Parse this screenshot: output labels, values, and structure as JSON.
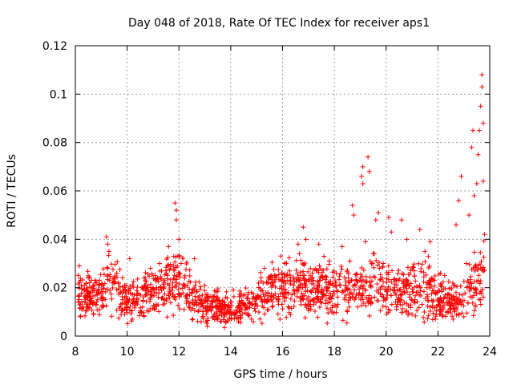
{
  "chart_data": {
    "type": "scatter",
    "title": "Day 048 of 2018, Rate Of TEC Index for receiver aps1",
    "xlabel": "GPS time / hours",
    "ylabel": "ROTI / TECUs",
    "xlim": [
      8,
      24
    ],
    "ylim": [
      0,
      0.12
    ],
    "xticks": [
      8,
      10,
      12,
      14,
      16,
      18,
      20,
      22,
      24
    ],
    "xtick_labels": [
      "8",
      "10",
      "12",
      "14",
      "16",
      "18",
      "20",
      "22",
      "24"
    ],
    "yticks": [
      0,
      0.02,
      0.04,
      0.06,
      0.08,
      0.1,
      0.12
    ],
    "ytick_labels": [
      "0",
      "0.02",
      "0.04",
      "0.06",
      "0.08",
      "0.1",
      "0.12"
    ],
    "grid": true,
    "marker": "+",
    "color": "#ff0000",
    "trend": [
      {
        "x": 8.1,
        "y": 0.018
      },
      {
        "x": 8.5,
        "y": 0.016
      },
      {
        "x": 9.0,
        "y": 0.017
      },
      {
        "x": 9.3,
        "y": 0.022
      },
      {
        "x": 9.7,
        "y": 0.018
      },
      {
        "x": 10.0,
        "y": 0.015
      },
      {
        "x": 10.5,
        "y": 0.015
      },
      {
        "x": 11.0,
        "y": 0.018
      },
      {
        "x": 11.5,
        "y": 0.022
      },
      {
        "x": 11.9,
        "y": 0.025
      },
      {
        "x": 12.3,
        "y": 0.019
      },
      {
        "x": 12.7,
        "y": 0.015
      },
      {
        "x": 13.2,
        "y": 0.012
      },
      {
        "x": 13.7,
        "y": 0.011
      },
      {
        "x": 14.2,
        "y": 0.011
      },
      {
        "x": 14.7,
        "y": 0.013
      },
      {
        "x": 15.2,
        "y": 0.016
      },
      {
        "x": 15.7,
        "y": 0.019
      },
      {
        "x": 16.2,
        "y": 0.02
      },
      {
        "x": 16.7,
        "y": 0.021
      },
      {
        "x": 17.2,
        "y": 0.02
      },
      {
        "x": 17.7,
        "y": 0.019
      },
      {
        "x": 18.2,
        "y": 0.018
      },
      {
        "x": 18.7,
        "y": 0.019
      },
      {
        "x": 19.2,
        "y": 0.02
      },
      {
        "x": 19.7,
        "y": 0.021
      },
      {
        "x": 20.2,
        "y": 0.02
      },
      {
        "x": 20.7,
        "y": 0.02
      },
      {
        "x": 21.2,
        "y": 0.021
      },
      {
        "x": 21.6,
        "y": 0.02
      },
      {
        "x": 22.0,
        "y": 0.016
      },
      {
        "x": 22.5,
        "y": 0.014
      },
      {
        "x": 23.0,
        "y": 0.015
      },
      {
        "x": 23.3,
        "y": 0.019
      },
      {
        "x": 23.7,
        "y": 0.026
      }
    ],
    "points": [
      {
        "x": 8.15,
        "y": 0.029
      },
      {
        "x": 8.2,
        "y": 0.008
      },
      {
        "x": 8.3,
        "y": 0.012
      },
      {
        "x": 8.5,
        "y": 0.024
      },
      {
        "x": 8.7,
        "y": 0.009
      },
      {
        "x": 8.9,
        "y": 0.021
      },
      {
        "x": 9.2,
        "y": 0.041
      },
      {
        "x": 9.25,
        "y": 0.038
      },
      {
        "x": 9.3,
        "y": 0.035
      },
      {
        "x": 9.6,
        "y": 0.026
      },
      {
        "x": 9.9,
        "y": 0.009
      },
      {
        "x": 10.1,
        "y": 0.032
      },
      {
        "x": 10.2,
        "y": 0.007
      },
      {
        "x": 10.6,
        "y": 0.012
      },
      {
        "x": 10.9,
        "y": 0.028
      },
      {
        "x": 11.2,
        "y": 0.016
      },
      {
        "x": 11.6,
        "y": 0.037
      },
      {
        "x": 11.8,
        "y": 0.033
      },
      {
        "x": 11.85,
        "y": 0.055
      },
      {
        "x": 11.9,
        "y": 0.052
      },
      {
        "x": 11.9,
        "y": 0.048
      },
      {
        "x": 12.0,
        "y": 0.04
      },
      {
        "x": 12.2,
        "y": 0.011
      },
      {
        "x": 12.6,
        "y": 0.032
      },
      {
        "x": 12.9,
        "y": 0.008
      },
      {
        "x": 13.1,
        "y": 0.004
      },
      {
        "x": 13.5,
        "y": 0.016
      },
      {
        "x": 13.8,
        "y": 0.006
      },
      {
        "x": 14.1,
        "y": 0.019
      },
      {
        "x": 14.3,
        "y": 0.006
      },
      {
        "x": 14.8,
        "y": 0.018
      },
      {
        "x": 15.3,
        "y": 0.028
      },
      {
        "x": 15.6,
        "y": 0.012
      },
      {
        "x": 15.9,
        "y": 0.007
      },
      {
        "x": 16.1,
        "y": 0.03
      },
      {
        "x": 16.6,
        "y": 0.038
      },
      {
        "x": 16.8,
        "y": 0.045
      },
      {
        "x": 16.9,
        "y": 0.04
      },
      {
        "x": 17.2,
        "y": 0.013
      },
      {
        "x": 17.4,
        "y": 0.038
      },
      {
        "x": 17.6,
        "y": 0.033
      },
      {
        "x": 17.9,
        "y": 0.01
      },
      {
        "x": 18.3,
        "y": 0.037
      },
      {
        "x": 18.6,
        "y": 0.031
      },
      {
        "x": 18.7,
        "y": 0.054
      },
      {
        "x": 18.75,
        "y": 0.05
      },
      {
        "x": 18.9,
        "y": 0.012
      },
      {
        "x": 19.05,
        "y": 0.066
      },
      {
        "x": 19.1,
        "y": 0.063
      },
      {
        "x": 19.1,
        "y": 0.07
      },
      {
        "x": 19.2,
        "y": 0.039
      },
      {
        "x": 19.3,
        "y": 0.074
      },
      {
        "x": 19.35,
        "y": 0.068
      },
      {
        "x": 19.5,
        "y": 0.034
      },
      {
        "x": 19.6,
        "y": 0.048
      },
      {
        "x": 19.7,
        "y": 0.051
      },
      {
        "x": 19.9,
        "y": 0.016
      },
      {
        "x": 20.1,
        "y": 0.049
      },
      {
        "x": 20.2,
        "y": 0.043
      },
      {
        "x": 20.4,
        "y": 0.012
      },
      {
        "x": 20.6,
        "y": 0.048
      },
      {
        "x": 20.8,
        "y": 0.04
      },
      {
        "x": 21.0,
        "y": 0.009
      },
      {
        "x": 21.3,
        "y": 0.044
      },
      {
        "x": 21.5,
        "y": 0.035
      },
      {
        "x": 21.7,
        "y": 0.039
      },
      {
        "x": 21.9,
        "y": 0.007
      },
      {
        "x": 22.1,
        "y": 0.026
      },
      {
        "x": 22.4,
        "y": 0.01
      },
      {
        "x": 22.7,
        "y": 0.046
      },
      {
        "x": 22.8,
        "y": 0.056
      },
      {
        "x": 22.9,
        "y": 0.066
      },
      {
        "x": 23.0,
        "y": 0.008
      },
      {
        "x": 23.1,
        "y": 0.03
      },
      {
        "x": 23.2,
        "y": 0.05
      },
      {
        "x": 23.3,
        "y": 0.078
      },
      {
        "x": 23.35,
        "y": 0.085
      },
      {
        "x": 23.4,
        "y": 0.058
      },
      {
        "x": 23.5,
        "y": 0.063
      },
      {
        "x": 23.55,
        "y": 0.075
      },
      {
        "x": 23.6,
        "y": 0.085
      },
      {
        "x": 23.65,
        "y": 0.095
      },
      {
        "x": 23.7,
        "y": 0.103
      },
      {
        "x": 23.7,
        "y": 0.108
      },
      {
        "x": 23.75,
        "y": 0.088
      },
      {
        "x": 23.75,
        "y": 0.064
      },
      {
        "x": 23.8,
        "y": 0.042
      }
    ]
  }
}
